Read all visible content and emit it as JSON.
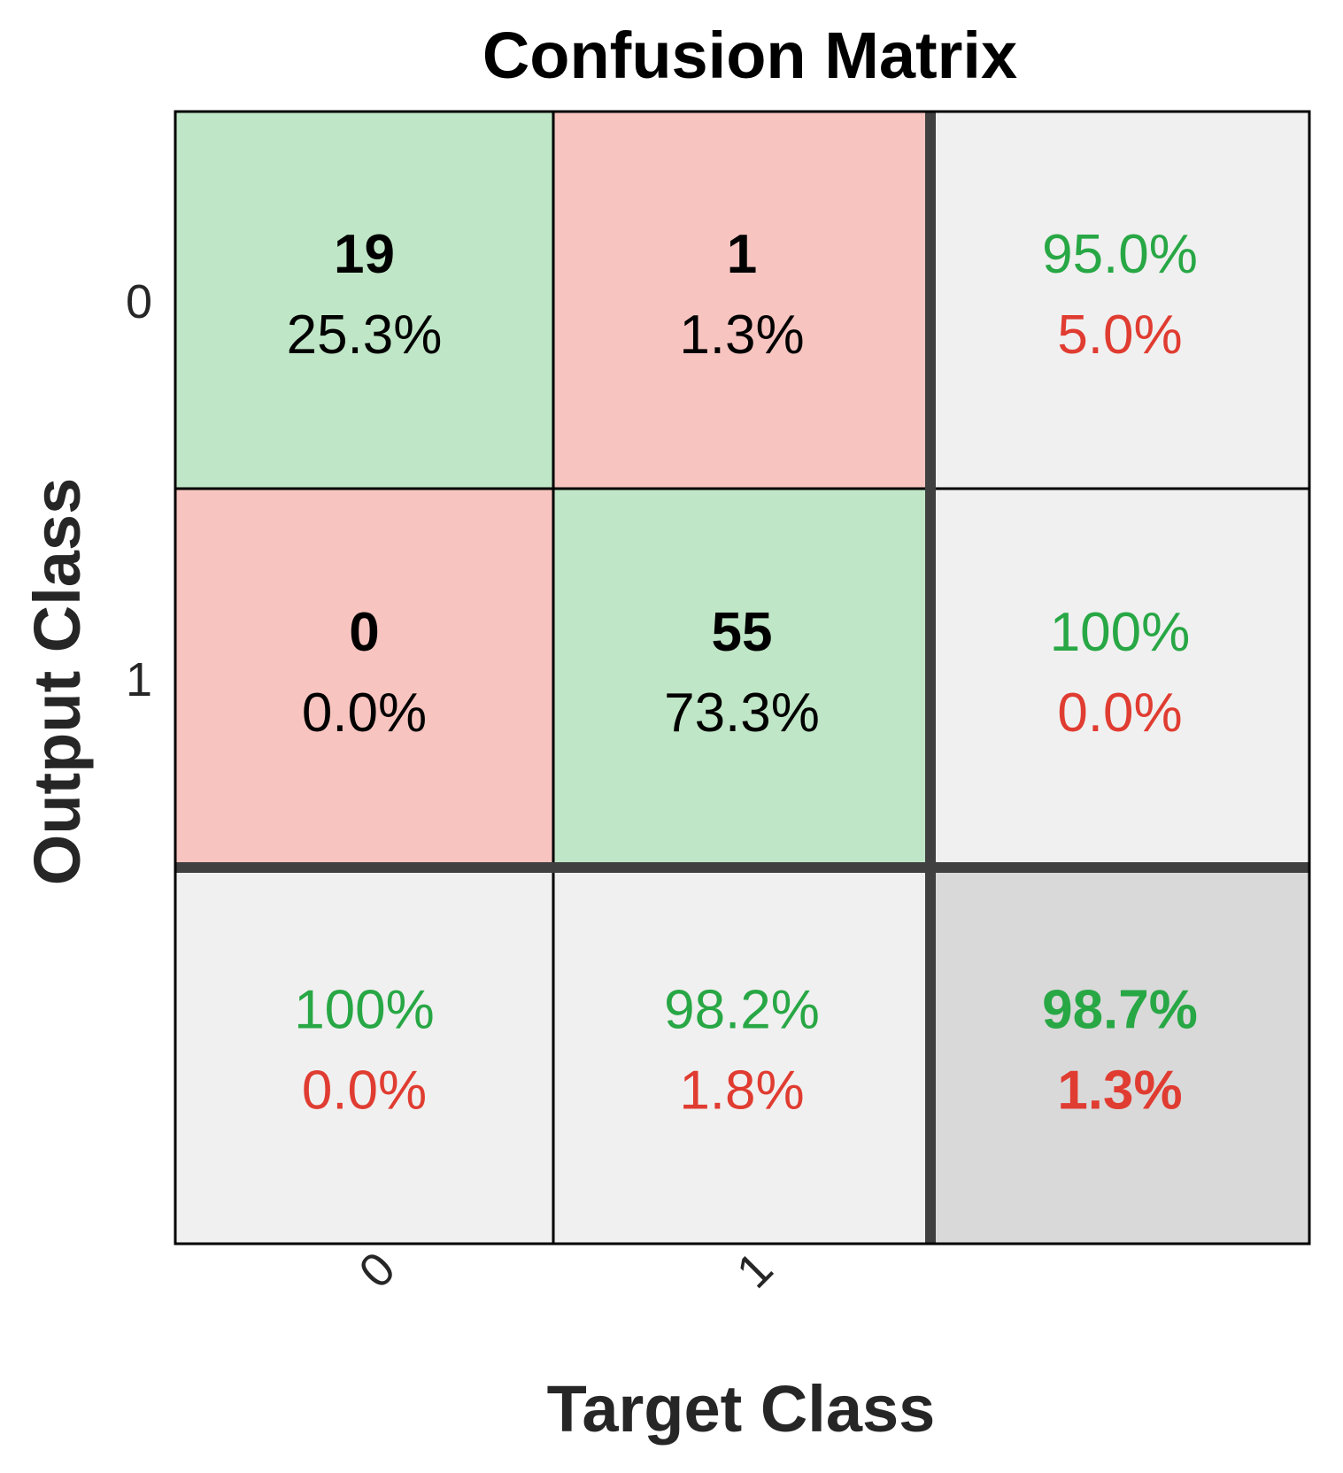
{
  "chart_data": {
    "type": "heatmap",
    "title": "Confusion Matrix",
    "xlabel": "Target Class",
    "ylabel": "Output Class",
    "target_classes": [
      "0",
      "1"
    ],
    "output_classes": [
      "0",
      "1"
    ],
    "cells": [
      [
        {
          "count": "19",
          "percent": "25.3%"
        },
        {
          "count": "1",
          "percent": "1.3%"
        }
      ],
      [
        {
          "count": "0",
          "percent": "0.0%"
        },
        {
          "count": "55",
          "percent": "73.3%"
        }
      ]
    ],
    "row_summary": [
      {
        "correct": "95.0%",
        "incorrect": "5.0%"
      },
      {
        "correct": "100%",
        "incorrect": "0.0%"
      }
    ],
    "column_summary": [
      {
        "correct": "100%",
        "incorrect": "0.0%"
      },
      {
        "correct": "98.2%",
        "incorrect": "1.8%"
      }
    ],
    "overall": {
      "correct": "98.7%",
      "incorrect": "1.3%"
    },
    "colors": {
      "correct_cell": "#bfe6c6",
      "incorrect_cell": "#f7c4c0",
      "summary_cell": "#f0f0f0",
      "overall_cell": "#d9d9d9",
      "correct_text": "#28a745",
      "incorrect_text": "#e03c31",
      "count_text": "#000000"
    }
  }
}
